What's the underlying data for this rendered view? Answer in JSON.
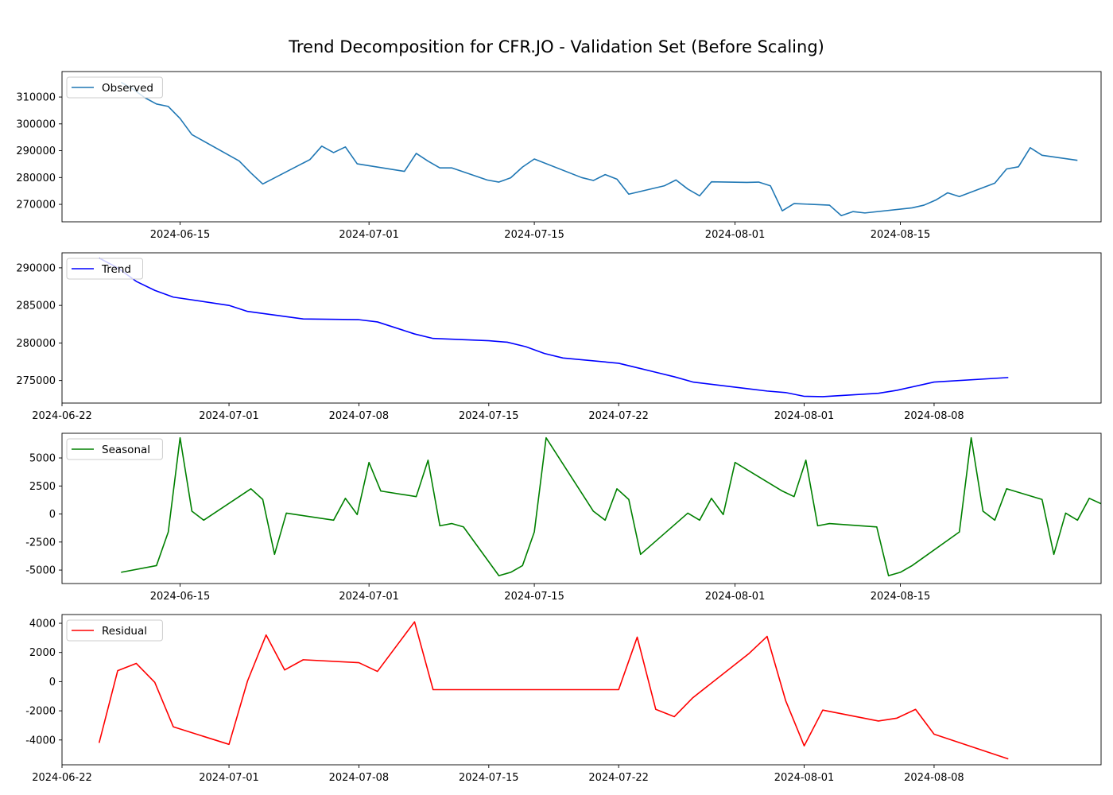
{
  "figure": {
    "title": "Trend Decomposition for CFR.JO - Validation Set (Before Scaling)"
  },
  "chart_data": [
    {
      "type": "line",
      "legend_location": "upper-left",
      "grid": false,
      "series": [
        {
          "name": "Observed",
          "color": "#1f77b4",
          "points": [
            [
              "2024-06-10",
              315500
            ],
            [
              "2024-06-11",
              313000
            ],
            [
              "2024-06-12",
              309800
            ],
            [
              "2024-06-13",
              307400
            ],
            [
              "2024-06-14",
              306500
            ],
            [
              "2024-06-15",
              302000
            ],
            [
              "2024-06-16",
              296000
            ],
            [
              "2024-06-20",
              286200
            ],
            [
              "2024-06-21",
              281700
            ],
            [
              "2024-06-22",
              277600
            ],
            [
              "2024-06-26",
              286700
            ],
            [
              "2024-06-27",
              291700
            ],
            [
              "2024-06-28",
              289300
            ],
            [
              "2024-06-29",
              291400
            ],
            [
              "2024-06-30",
              285100
            ],
            [
              "2024-07-04",
              282300
            ],
            [
              "2024-07-05",
              289000
            ],
            [
              "2024-07-06",
              286100
            ],
            [
              "2024-07-07",
              283600
            ],
            [
              "2024-07-08",
              283600
            ],
            [
              "2024-07-11",
              279100
            ],
            [
              "2024-07-12",
              278300
            ],
            [
              "2024-07-13",
              279900
            ],
            [
              "2024-07-14",
              283900
            ],
            [
              "2024-07-15",
              286900
            ],
            [
              "2024-07-19",
              280000
            ],
            [
              "2024-07-20",
              278900
            ],
            [
              "2024-07-21",
              281100
            ],
            [
              "2024-07-22",
              279400
            ],
            [
              "2024-07-23",
              273800
            ],
            [
              "2024-07-26",
              276900
            ],
            [
              "2024-07-27",
              279100
            ],
            [
              "2024-07-28",
              275700
            ],
            [
              "2024-07-29",
              273200
            ],
            [
              "2024-07-30",
              278400
            ],
            [
              "2024-08-02",
              278200
            ],
            [
              "2024-08-03",
              278300
            ],
            [
              "2024-08-04",
              276900
            ],
            [
              "2024-08-05",
              267600
            ],
            [
              "2024-08-06",
              270300
            ],
            [
              "2024-08-09",
              269700
            ],
            [
              "2024-08-10",
              265800
            ],
            [
              "2024-08-11",
              267300
            ],
            [
              "2024-08-12",
              266800
            ],
            [
              "2024-08-16",
              268700
            ],
            [
              "2024-08-17",
              269700
            ],
            [
              "2024-08-18",
              271600
            ],
            [
              "2024-08-19",
              274300
            ],
            [
              "2024-08-20",
              272900
            ],
            [
              "2024-08-23",
              277900
            ],
            [
              "2024-08-24",
              283200
            ],
            [
              "2024-08-25",
              284000
            ],
            [
              "2024-08-26",
              291100
            ],
            [
              "2024-08-27",
              288300
            ],
            [
              "2024-08-30",
              286400
            ]
          ]
        }
      ],
      "xlim": [
        "2024-06-05",
        "2024-09-01"
      ],
      "ylim": [
        263500,
        319500
      ],
      "yticks": [
        270000,
        280000,
        290000,
        300000,
        310000
      ],
      "xticks": [
        "2024-06-15",
        "2024-07-01",
        "2024-07-15",
        "2024-08-01",
        "2024-08-15"
      ]
    },
    {
      "type": "line",
      "legend_location": "upper-left",
      "grid": false,
      "series": [
        {
          "name": "Trend",
          "color": "#0000ff",
          "points": [
            [
              "2024-06-24",
              291300
            ],
            [
              "2024-06-25",
              290000
            ],
            [
              "2024-06-26",
              288200
            ],
            [
              "2024-06-27",
              287000
            ],
            [
              "2024-06-28",
              286100
            ],
            [
              "2024-07-01",
              285000
            ],
            [
              "2024-07-02",
              284200
            ],
            [
              "2024-07-05",
              283200
            ],
            [
              "2024-07-08",
              283100
            ],
            [
              "2024-07-09",
              282800
            ],
            [
              "2024-07-11",
              281200
            ],
            [
              "2024-07-12",
              280600
            ],
            [
              "2024-07-15",
              280300
            ],
            [
              "2024-07-16",
              280100
            ],
            [
              "2024-07-17",
              279500
            ],
            [
              "2024-07-18",
              278600
            ],
            [
              "2024-07-19",
              278000
            ],
            [
              "2024-07-22",
              277300
            ],
            [
              "2024-07-23",
              276700
            ],
            [
              "2024-07-24",
              276100
            ],
            [
              "2024-07-25",
              275500
            ],
            [
              "2024-07-26",
              274800
            ],
            [
              "2024-07-29",
              273900
            ],
            [
              "2024-07-30",
              273600
            ],
            [
              "2024-07-31",
              273400
            ],
            [
              "2024-08-01",
              272900
            ],
            [
              "2024-08-02",
              272850
            ],
            [
              "2024-08-05",
              273300
            ],
            [
              "2024-08-06",
              273700
            ],
            [
              "2024-08-08",
              274800
            ],
            [
              "2024-08-12",
              275400
            ]
          ]
        }
      ],
      "xlim": [
        "2024-06-22",
        "2024-08-17"
      ],
      "ylim": [
        272000,
        292000
      ],
      "yticks": [
        275000,
        280000,
        285000,
        290000
      ],
      "xticks": [
        "2024-06-22",
        "2024-07-01",
        "2024-07-08",
        "2024-07-15",
        "2024-07-22",
        "2024-08-01",
        "2024-08-08"
      ]
    },
    {
      "type": "line",
      "legend_location": "upper-left",
      "grid": false,
      "series": [
        {
          "name": "Seasonal",
          "color": "#008000",
          "points": [
            [
              "2024-06-10",
              -5200
            ],
            [
              "2024-06-13",
              -4600
            ],
            [
              "2024-06-14",
              -1600
            ],
            [
              "2024-06-15",
              6800
            ],
            [
              "2024-06-16",
              250
            ],
            [
              "2024-06-17",
              -550
            ],
            [
              "2024-06-21",
              2250
            ],
            [
              "2024-06-22",
              1300
            ],
            [
              "2024-06-23",
              -3600
            ],
            [
              "2024-06-24",
              80
            ],
            [
              "2024-06-28",
              -550
            ],
            [
              "2024-06-29",
              1400
            ],
            [
              "2024-06-30",
              -50
            ],
            [
              "2024-07-01",
              4600
            ],
            [
              "2024-07-02",
              2050
            ],
            [
              "2024-07-05",
              1550
            ],
            [
              "2024-07-06",
              4800
            ],
            [
              "2024-07-07",
              -1050
            ],
            [
              "2024-07-08",
              -850
            ],
            [
              "2024-07-09",
              -1150
            ],
            [
              "2024-07-12",
              -5500
            ],
            [
              "2024-07-13",
              -5200
            ],
            [
              "2024-07-14",
              -4600
            ],
            [
              "2024-07-15",
              -1600
            ],
            [
              "2024-07-16",
              6800
            ],
            [
              "2024-07-20",
              250
            ],
            [
              "2024-07-21",
              -550
            ],
            [
              "2024-07-22",
              2250
            ],
            [
              "2024-07-23",
              1300
            ],
            [
              "2024-07-24",
              -3600
            ],
            [
              "2024-07-28",
              80
            ],
            [
              "2024-07-29",
              -550
            ],
            [
              "2024-07-30",
              1400
            ],
            [
              "2024-07-31",
              -50
            ],
            [
              "2024-08-01",
              4600
            ],
            [
              "2024-08-05",
              2050
            ],
            [
              "2024-08-06",
              1550
            ],
            [
              "2024-08-07",
              4800
            ],
            [
              "2024-08-08",
              -1050
            ],
            [
              "2024-08-09",
              -850
            ],
            [
              "2024-08-13",
              -1150
            ],
            [
              "2024-08-14",
              -5500
            ],
            [
              "2024-08-15",
              -5200
            ],
            [
              "2024-08-16",
              -4600
            ],
            [
              "2024-08-20",
              -1600
            ],
            [
              "2024-08-21",
              6800
            ],
            [
              "2024-08-22",
              250
            ],
            [
              "2024-08-23",
              -550
            ],
            [
              "2024-08-24",
              2250
            ],
            [
              "2024-08-27",
              1300
            ],
            [
              "2024-08-28",
              -3600
            ],
            [
              "2024-08-29",
              80
            ],
            [
              "2024-08-30",
              -550
            ],
            [
              "2024-08-31",
              1400
            ],
            [
              "2024-09-03",
              -50
            ]
          ]
        }
      ],
      "xlim": [
        "2024-06-05",
        "2024-09-01"
      ],
      "ylim": [
        -6200,
        7200
      ],
      "yticks": [
        -5000,
        -2500,
        0,
        2500,
        5000
      ],
      "xticks": [
        "2024-06-15",
        "2024-07-01",
        "2024-07-15",
        "2024-08-01",
        "2024-08-15"
      ]
    },
    {
      "type": "line",
      "legend_location": "upper-left",
      "grid": false,
      "series": [
        {
          "name": "Residual",
          "color": "#ff0000",
          "points": [
            [
              "2024-06-24",
              -4200
            ],
            [
              "2024-06-25",
              750
            ],
            [
              "2024-06-26",
              1250
            ],
            [
              "2024-06-27",
              -50
            ],
            [
              "2024-06-28",
              -3100
            ],
            [
              "2024-07-01",
              -4300
            ],
            [
              "2024-07-02",
              50
            ],
            [
              "2024-07-03",
              3200
            ],
            [
              "2024-07-04",
              800
            ],
            [
              "2024-07-05",
              1500
            ],
            [
              "2024-07-08",
              1300
            ],
            [
              "2024-07-09",
              700
            ],
            [
              "2024-07-11",
              4100
            ],
            [
              "2024-07-12",
              -550
            ],
            [
              "2024-07-22",
              -550
            ],
            [
              "2024-07-23",
              3050
            ],
            [
              "2024-07-24",
              -1900
            ],
            [
              "2024-07-25",
              -2400
            ],
            [
              "2024-07-26",
              -1100
            ],
            [
              "2024-07-29",
              1900
            ],
            [
              "2024-07-30",
              3100
            ],
            [
              "2024-07-31",
              -1300
            ],
            [
              "2024-08-01",
              -4400
            ],
            [
              "2024-08-02",
              -1950
            ],
            [
              "2024-08-05",
              -2700
            ],
            [
              "2024-08-06",
              -2500
            ],
            [
              "2024-08-07",
              -1900
            ],
            [
              "2024-08-08",
              -3600
            ],
            [
              "2024-08-12",
              -5300
            ]
          ]
        }
      ],
      "xlim": [
        "2024-06-22",
        "2024-08-17"
      ],
      "ylim": [
        -5700,
        4600
      ],
      "yticks": [
        -4000,
        -2000,
        0,
        2000,
        4000
      ],
      "xticks": [
        "2024-06-22",
        "2024-07-01",
        "2024-07-08",
        "2024-07-15",
        "2024-07-22",
        "2024-08-01",
        "2024-08-08"
      ]
    }
  ]
}
